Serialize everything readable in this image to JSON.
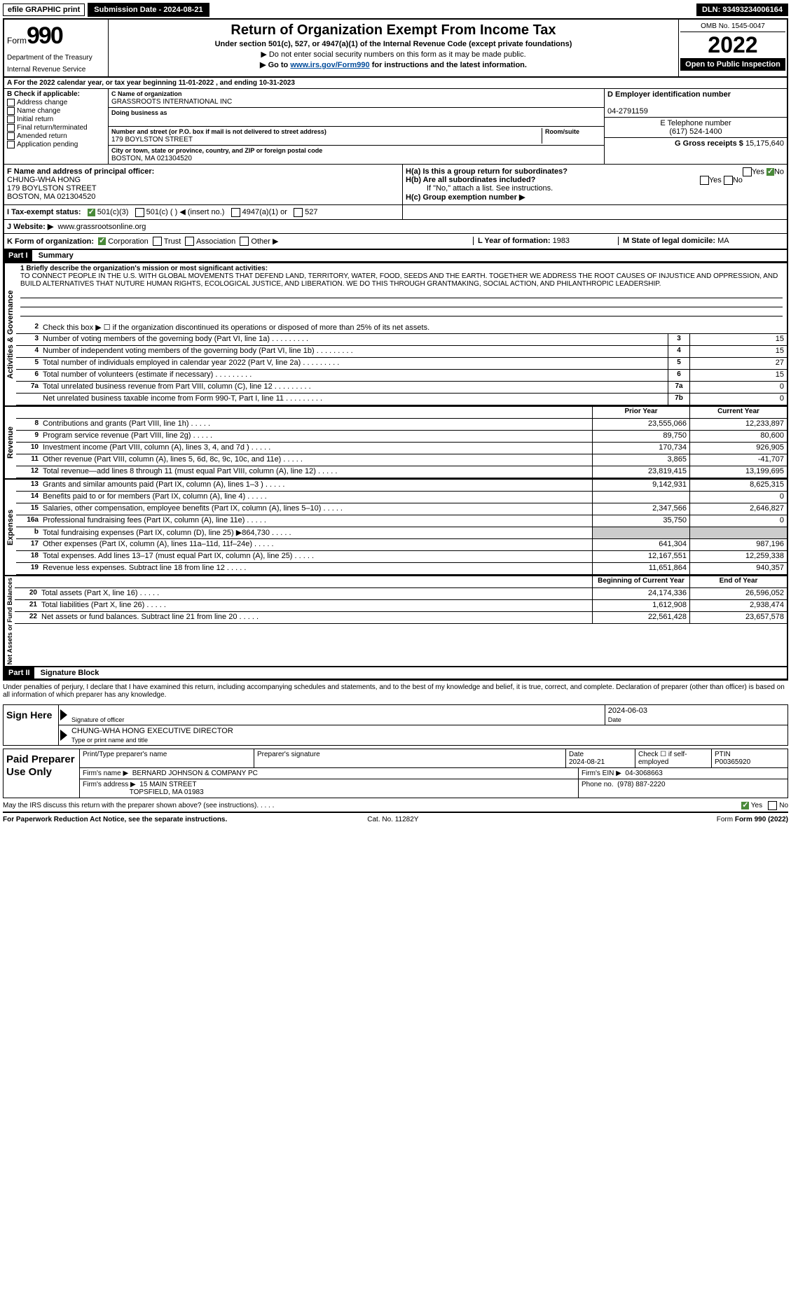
{
  "topbar": {
    "efile": "efile GRAPHIC print",
    "submission_label": "Submission Date - 2024-08-21",
    "dln": "DLN: 93493234006164"
  },
  "header": {
    "form_word": "Form",
    "form_num": "990",
    "dept": "Department of the Treasury",
    "irs": "Internal Revenue Service",
    "title_main": "Return of Organization Exempt From Income Tax",
    "title_sub": "Under section 501(c), 527, or 4947(a)(1) of the Internal Revenue Code (except private foundations)",
    "note1": "▶ Do not enter social security numbers on this form as it may be made public.",
    "note2_pre": "▶ Go to ",
    "note2_link": "www.irs.gov/Form990",
    "note2_post": " for instructions and the latest information.",
    "omb": "OMB No. 1545-0047",
    "year": "2022",
    "open_public": "Open to Public Inspection"
  },
  "cal_year": "A For the 2022 calendar year, or tax year beginning 11-01-2022    , and ending 10-31-2023",
  "checkB": {
    "label": "B Check if applicable:",
    "items": [
      "Address change",
      "Name change",
      "Initial return",
      "Final return/terminated",
      "Amended return",
      "Application pending"
    ]
  },
  "segC": {
    "name_label": "C Name of organization",
    "name": "GRASSROOTS INTERNATIONAL INC",
    "dba_label": "Doing business as",
    "addr_label": "Number and street (or P.O. box if mail is not delivered to street address)",
    "room_label": "Room/suite",
    "address": "179 BOYLSTON STREET",
    "city_label": "City or town, state or province, country, and ZIP or foreign postal code",
    "city": "BOSTON, MA  021304520"
  },
  "segD": {
    "ein_label": "D Employer identification number",
    "ein": "04-2791159",
    "tel_label": "E Telephone number",
    "tel": "(617) 524-1400",
    "gross_label": "G Gross receipts $",
    "gross": "15,175,640"
  },
  "f": {
    "label": "F  Name and address of principal officer:",
    "name": "CHUNG-WHA HONG",
    "addr1": "179 BOYLSTON STREET",
    "addr2": "BOSTON, MA  021304520"
  },
  "h": {
    "a_label": "H(a)  Is this a group return for subordinates?",
    "b_label": "H(b)  Are all subordinates included?",
    "b_note": "If \"No,\" attach a list. See instructions.",
    "c_label": "H(c)  Group exemption number ▶"
  },
  "i": {
    "label": "I   Tax-exempt status:",
    "opt1": "501(c)(3)",
    "opt2": "501(c) (   ) ◀ (insert no.)",
    "opt3": "4947(a)(1) or",
    "opt4": "527"
  },
  "j": {
    "label": "J   Website: ▶",
    "url": "www.grassrootsonline.org"
  },
  "k": {
    "label": "K Form of organization:",
    "opts": [
      "Corporation",
      "Trust",
      "Association",
      "Other ▶"
    ],
    "l_label": "L Year of formation:",
    "l_val": "1983",
    "m_label": "M State of legal domicile:",
    "m_val": "MA"
  },
  "part1_label": "Part I",
  "part1_title": "Summary",
  "mission_label": "1  Briefly describe the organization's mission or most significant activities:",
  "mission": "TO CONNECT PEOPLE IN THE U.S. WITH GLOBAL MOVEMENTS THAT DEFEND LAND, TERRITORY, WATER, FOOD, SEEDS AND THE EARTH. TOGETHER WE ADDRESS THE ROOT CAUSES OF INJUSTICE AND OPPRESSION, AND BUILD ALTERNATIVES THAT NUTURE HUMAN RIGHTS, ECOLOGICAL JUSTICE, AND LIBERATION. WE DO THIS THROUGH GRANTMAKING, SOCIAL ACTION, AND PHILANTHROPIC LEADERSHIP.",
  "gov_lines": [
    {
      "n": "2",
      "d": "Check this box ▶ ☐  if the organization discontinued its operations or disposed of more than 25% of its net assets.",
      "box": "",
      "v": ""
    },
    {
      "n": "3",
      "d": "Number of voting members of the governing body (Part VI, line 1a)",
      "box": "3",
      "v": "15"
    },
    {
      "n": "4",
      "d": "Number of independent voting members of the governing body (Part VI, line 1b)",
      "box": "4",
      "v": "15"
    },
    {
      "n": "5",
      "d": "Total number of individuals employed in calendar year 2022 (Part V, line 2a)",
      "box": "5",
      "v": "27"
    },
    {
      "n": "6",
      "d": "Total number of volunteers (estimate if necessary)",
      "box": "6",
      "v": "15"
    },
    {
      "n": "7a",
      "d": "Total unrelated business revenue from Part VIII, column (C), line 12",
      "box": "7a",
      "v": "0"
    },
    {
      "n": "",
      "d": "Net unrelated business taxable income from Form 990-T, Part I, line 11",
      "box": "7b",
      "v": "0"
    }
  ],
  "col_headers": {
    "prior": "Prior Year",
    "current": "Current Year"
  },
  "rev_lines": [
    {
      "n": "8",
      "d": "Contributions and grants (Part VIII, line 1h)",
      "p": "23,555,066",
      "c": "12,233,897"
    },
    {
      "n": "9",
      "d": "Program service revenue (Part VIII, line 2g)",
      "p": "89,750",
      "c": "80,600"
    },
    {
      "n": "10",
      "d": "Investment income (Part VIII, column (A), lines 3, 4, and 7d )",
      "p": "170,734",
      "c": "926,905"
    },
    {
      "n": "11",
      "d": "Other revenue (Part VIII, column (A), lines 5, 6d, 8c, 9c, 10c, and 11e)",
      "p": "3,865",
      "c": "-41,707"
    },
    {
      "n": "12",
      "d": "Total revenue—add lines 8 through 11 (must equal Part VIII, column (A), line 12)",
      "p": "23,819,415",
      "c": "13,199,695"
    }
  ],
  "exp_lines": [
    {
      "n": "13",
      "d": "Grants and similar amounts paid (Part IX, column (A), lines 1–3 )",
      "p": "9,142,931",
      "c": "8,625,315"
    },
    {
      "n": "14",
      "d": "Benefits paid to or for members (Part IX, column (A), line 4)",
      "p": "",
      "c": "0"
    },
    {
      "n": "15",
      "d": "Salaries, other compensation, employee benefits (Part IX, column (A), lines 5–10)",
      "p": "2,347,566",
      "c": "2,646,827"
    },
    {
      "n": "16a",
      "d": "Professional fundraising fees (Part IX, column (A), line 11e)",
      "p": "35,750",
      "c": "0"
    },
    {
      "n": "b",
      "d": "Total fundraising expenses (Part IX, column (D), line 25) ▶864,730",
      "p": "gray",
      "c": "gray"
    },
    {
      "n": "17",
      "d": "Other expenses (Part IX, column (A), lines 11a–11d, 11f–24e)",
      "p": "641,304",
      "c": "987,196"
    },
    {
      "n": "18",
      "d": "Total expenses. Add lines 13–17 (must equal Part IX, column (A), line 25)",
      "p": "12,167,551",
      "c": "12,259,338"
    },
    {
      "n": "19",
      "d": "Revenue less expenses. Subtract line 18 from line 12",
      "p": "11,651,864",
      "c": "940,357"
    }
  ],
  "net_headers": {
    "beg": "Beginning of Current Year",
    "end": "End of Year"
  },
  "net_lines": [
    {
      "n": "20",
      "d": "Total assets (Part X, line 16)",
      "p": "24,174,336",
      "c": "26,596,052"
    },
    {
      "n": "21",
      "d": "Total liabilities (Part X, line 26)",
      "p": "1,612,908",
      "c": "2,938,474"
    },
    {
      "n": "22",
      "d": "Net assets or fund balances. Subtract line 21 from line 20",
      "p": "22,561,428",
      "c": "23,657,578"
    }
  ],
  "part2_label": "Part II",
  "part2_title": "Signature Block",
  "sig_note": "Under penalties of perjury, I declare that I have examined this return, including accompanying schedules and statements, and to the best of my knowledge and belief, it is true, correct, and complete. Declaration of preparer (other than officer) is based on all information of which preparer has any knowledge.",
  "sign": {
    "here": "Sign Here",
    "officer_sig": "Signature of officer",
    "date": "2024-06-03",
    "date_label": "Date",
    "name_title": "CHUNG-WHA HONG  EXECUTIVE DIRECTOR",
    "name_label": "Type or print name and title"
  },
  "prep": {
    "label": "Paid Preparer Use Only",
    "name_label": "Print/Type preparer's name",
    "sig_label": "Preparer's signature",
    "date_label": "Date",
    "date": "2024-08-21",
    "self_label": "Check ☐ if self-employed",
    "ptin_label": "PTIN",
    "ptin": "P00365920",
    "firm_name_label": "Firm's name     ▶",
    "firm_name": "BERNARD JOHNSON & COMPANY PC",
    "firm_ein_label": "Firm's EIN ▶",
    "firm_ein": "04-3068663",
    "firm_addr_label": "Firm's address ▶",
    "firm_addr1": "15 MAIN STREET",
    "firm_addr2": "TOPSFIELD, MA  01983",
    "phone_label": "Phone no.",
    "phone": "(978) 887-2220"
  },
  "may_irs": "May the IRS discuss this return with the preparer shown above? (see instructions)",
  "footer": {
    "left": "For Paperwork Reduction Act Notice, see the separate instructions.",
    "mid": "Cat. No. 11282Y",
    "right": "Form 990 (2022)"
  },
  "vert_labels": {
    "gov": "Activities & Governance",
    "rev": "Revenue",
    "exp": "Expenses",
    "net": "Net Assets or Fund Balances"
  }
}
